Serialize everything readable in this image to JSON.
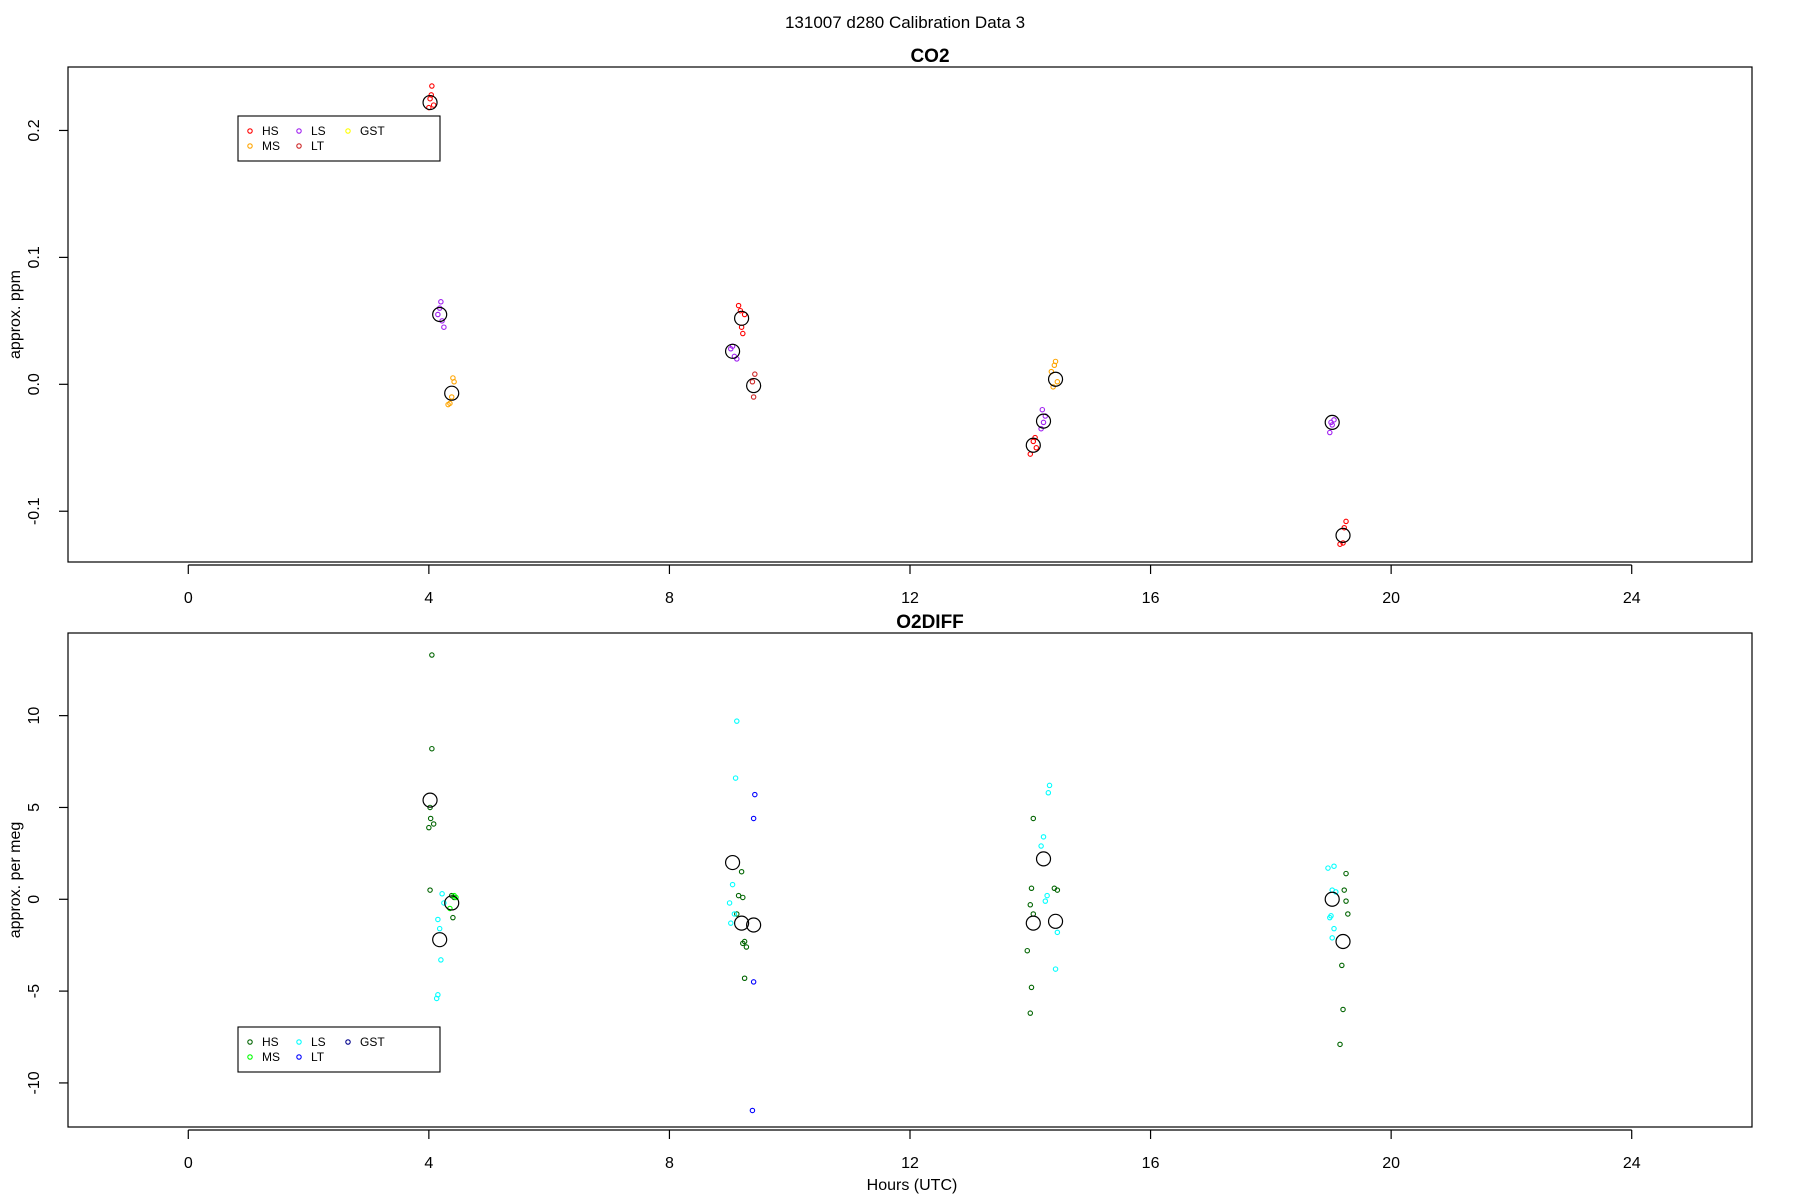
{
  "figure_title": "131007   d280   Calibration Data 3",
  "chart_data": [
    {
      "type": "scatter",
      "title": "CO2",
      "ylabel": "approx. ppm",
      "xlabel": "",
      "xlim": [
        -2,
        26
      ],
      "ylim": [
        -0.14,
        0.25
      ],
      "x_ticks": [
        0,
        4,
        8,
        12,
        16,
        20,
        24
      ],
      "y_ticks": [
        -0.1,
        0.0,
        0.1,
        0.2
      ],
      "y_tick_labels": [
        "-0.1",
        "0.0",
        "0.1",
        "0.2"
      ],
      "legend_position": "top-left",
      "legend": [
        {
          "label": "HS",
          "color": "#ff0000"
        },
        {
          "label": "MS",
          "color": "#ffa500"
        },
        {
          "label": "LS",
          "color": "#a020f0"
        },
        {
          "label": "LT",
          "color": "#cd2626"
        },
        {
          "label": "GST",
          "color": "#ffff00"
        }
      ],
      "series": [
        {
          "name": "HS",
          "color": "#ff0000",
          "points": [
            [
              4.02,
              0.225
            ],
            [
              4.05,
              0.235
            ],
            [
              4.0,
              0.218
            ],
            [
              4.08,
              0.22
            ],
            [
              4.04,
              0.228
            ],
            [
              9.15,
              0.062
            ],
            [
              9.2,
              0.045
            ],
            [
              9.25,
              0.055
            ],
            [
              9.22,
              0.04
            ],
            [
              9.18,
              0.058
            ],
            [
              14.05,
              -0.045
            ],
            [
              14.0,
              -0.055
            ],
            [
              14.1,
              -0.05
            ],
            [
              14.08,
              -0.042
            ],
            [
              19.25,
              -0.108
            ],
            [
              19.2,
              -0.125
            ],
            [
              19.22,
              -0.113
            ],
            [
              19.15,
              -0.126
            ]
          ]
        },
        {
          "name": "MS",
          "color": "#ffa500",
          "points": [
            [
              4.35,
              -0.015
            ],
            [
              4.4,
              0.005
            ],
            [
              4.38,
              -0.01
            ],
            [
              4.32,
              -0.016
            ],
            [
              4.42,
              0.002
            ],
            [
              14.4,
              0.015
            ],
            [
              14.45,
              0.002
            ],
            [
              14.35,
              0.01
            ],
            [
              14.42,
              0.018
            ],
            [
              14.38,
              -0.002
            ]
          ]
        },
        {
          "name": "LS",
          "color": "#a020f0",
          "points": [
            [
              4.18,
              0.06
            ],
            [
              4.2,
              0.065
            ],
            [
              4.25,
              0.045
            ],
            [
              4.15,
              0.055
            ],
            [
              4.22,
              0.05
            ],
            [
              9.05,
              0.03
            ],
            [
              9.08,
              0.022
            ],
            [
              9.12,
              0.02
            ],
            [
              9.02,
              0.028
            ],
            [
              14.2,
              -0.02
            ],
            [
              14.25,
              -0.025
            ],
            [
              14.18,
              -0.035
            ],
            [
              14.22,
              -0.03
            ],
            [
              19.0,
              -0.03
            ],
            [
              19.05,
              -0.028
            ],
            [
              18.98,
              -0.038
            ],
            [
              19.02,
              -0.032
            ]
          ]
        },
        {
          "name": "LT",
          "color": "#cd2626",
          "points": [
            [
              9.42,
              0.008
            ],
            [
              9.4,
              -0.01
            ],
            [
              9.38,
              0.002
            ]
          ]
        },
        {
          "name": "GST",
          "color": "#ffff00",
          "points": []
        }
      ],
      "means": [
        [
          4.02,
          0.222
        ],
        [
          4.18,
          0.055
        ],
        [
          4.38,
          -0.007
        ],
        [
          9.05,
          0.026
        ],
        [
          9.2,
          0.052
        ],
        [
          9.4,
          -0.001
        ],
        [
          14.05,
          -0.048
        ],
        [
          14.22,
          -0.029
        ],
        [
          14.42,
          0.004
        ],
        [
          19.02,
          -0.03
        ],
        [
          19.2,
          -0.119
        ]
      ]
    },
    {
      "type": "scatter",
      "title": "O2DIFF",
      "ylabel": "approx. per meg",
      "xlabel": "Hours (UTC)",
      "xlim": [
        -2,
        26
      ],
      "ylim": [
        -12.4,
        14.5
      ],
      "x_ticks": [
        0,
        4,
        8,
        12,
        16,
        20,
        24
      ],
      "y_ticks": [
        -10,
        -5,
        0,
        5,
        10
      ],
      "y_tick_labels": [
        "-10",
        "-5",
        "0",
        "5",
        "10"
      ],
      "legend_position": "bottom-left",
      "legend": [
        {
          "label": "HS",
          "color": "#006400"
        },
        {
          "label": "MS",
          "color": "#00ff00"
        },
        {
          "label": "LS",
          "color": "#00ffff"
        },
        {
          "label": "LT",
          "color": "#0000ff"
        },
        {
          "label": "GST",
          "color": "#00008b"
        }
      ],
      "series": [
        {
          "name": "HS",
          "color": "#006400",
          "points": [
            [
              4.05,
              13.3
            ],
            [
              4.05,
              8.2
            ],
            [
              4.02,
              5.0
            ],
            [
              4.03,
              4.4
            ],
            [
              4.08,
              4.1
            ],
            [
              4.0,
              3.9
            ],
            [
              4.02,
              0.5
            ],
            [
              4.4,
              -1.0
            ],
            [
              4.42,
              0.1
            ],
            [
              4.38,
              0.2
            ],
            [
              9.2,
              1.5
            ],
            [
              9.15,
              0.2
            ],
            [
              9.22,
              0.1
            ],
            [
              9.12,
              -0.8
            ],
            [
              9.25,
              -2.3
            ],
            [
              9.28,
              -2.6
            ],
            [
              9.22,
              -2.4
            ],
            [
              9.25,
              -4.3
            ],
            [
              14.05,
              4.4
            ],
            [
              14.02,
              0.6
            ],
            [
              14.0,
              -0.3
            ],
            [
              14.05,
              -0.8
            ],
            [
              13.95,
              -2.8
            ],
            [
              14.02,
              -4.8
            ],
            [
              14.0,
              -6.2
            ],
            [
              14.4,
              0.6
            ],
            [
              14.45,
              0.5
            ],
            [
              19.25,
              1.4
            ],
            [
              19.22,
              0.5
            ],
            [
              19.25,
              -0.1
            ],
            [
              19.28,
              -0.8
            ],
            [
              19.18,
              -3.6
            ],
            [
              19.2,
              -6.0
            ],
            [
              19.15,
              -7.9
            ]
          ]
        },
        {
          "name": "MS",
          "color": "#00ff00",
          "points": [
            [
              4.42,
              0.2
            ],
            [
              4.45,
              0.1
            ],
            [
              4.35,
              -0.5
            ]
          ]
        },
        {
          "name": "LS",
          "color": "#00ffff",
          "points": [
            [
              4.22,
              0.3
            ],
            [
              4.25,
              -0.2
            ],
            [
              4.15,
              -1.1
            ],
            [
              4.18,
              -1.6
            ],
            [
              4.2,
              -3.3
            ],
            [
              4.15,
              -5.2
            ],
            [
              4.13,
              -5.4
            ],
            [
              9.12,
              9.7
            ],
            [
              9.1,
              6.6
            ],
            [
              9.05,
              0.8
            ],
            [
              9.0,
              -0.2
            ],
            [
              9.08,
              -0.8
            ],
            [
              9.02,
              -1.3
            ],
            [
              14.32,
              6.2
            ],
            [
              14.3,
              5.8
            ],
            [
              14.22,
              3.4
            ],
            [
              14.18,
              2.9
            ],
            [
              14.28,
              0.2
            ],
            [
              14.25,
              -0.1
            ],
            [
              14.45,
              -1.8
            ],
            [
              14.42,
              -3.8
            ],
            [
              18.95,
              1.7
            ],
            [
              19.05,
              1.8
            ],
            [
              19.02,
              0.5
            ],
            [
              19.08,
              0.4
            ],
            [
              19.0,
              -0.9
            ],
            [
              18.98,
              -1.0
            ],
            [
              19.02,
              -2.1
            ],
            [
              19.05,
              -1.6
            ]
          ]
        },
        {
          "name": "LT",
          "color": "#0000ff",
          "points": [
            [
              9.42,
              5.7
            ],
            [
              9.4,
              4.4
            ],
            [
              9.4,
              -4.5
            ],
            [
              9.38,
              -11.5
            ]
          ]
        },
        {
          "name": "GST",
          "color": "#00008b",
          "points": []
        }
      ],
      "means": [
        [
          4.02,
          5.4
        ],
        [
          4.18,
          -2.2
        ],
        [
          4.38,
          -0.2
        ],
        [
          9.05,
          2.0
        ],
        [
          9.2,
          -1.3
        ],
        [
          9.4,
          -1.4
        ],
        [
          14.05,
          -1.3
        ],
        [
          14.22,
          2.2
        ],
        [
          14.42,
          -1.2
        ],
        [
          19.02,
          0.0
        ],
        [
          19.2,
          -2.3
        ]
      ]
    }
  ]
}
